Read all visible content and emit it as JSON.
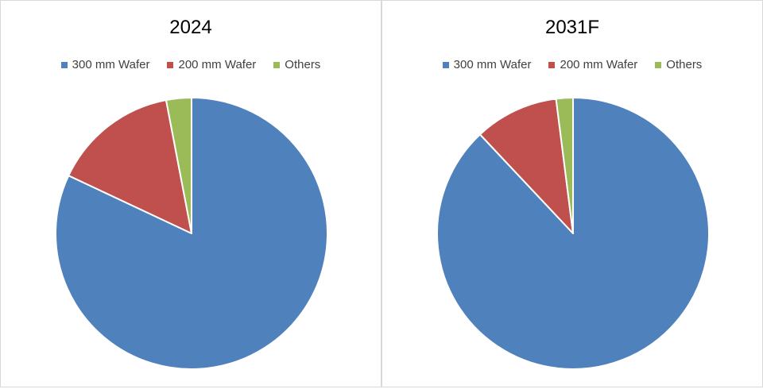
{
  "chart_data": [
    {
      "type": "pie",
      "title": "2024",
      "categories": [
        "300 mm Wafer",
        "200 mm Wafer",
        "Others"
      ],
      "values": [
        82,
        15,
        3
      ],
      "colors": [
        "#4F81BD",
        "#C0504D",
        "#9BBB59"
      ],
      "legend_position": "top"
    },
    {
      "type": "pie",
      "title": "2031F",
      "categories": [
        "300 mm Wafer",
        "200 mm Wafer",
        "Others"
      ],
      "values": [
        88,
        10,
        2
      ],
      "colors": [
        "#4F81BD",
        "#C0504D",
        "#9BBB59"
      ],
      "legend_position": "top"
    }
  ]
}
